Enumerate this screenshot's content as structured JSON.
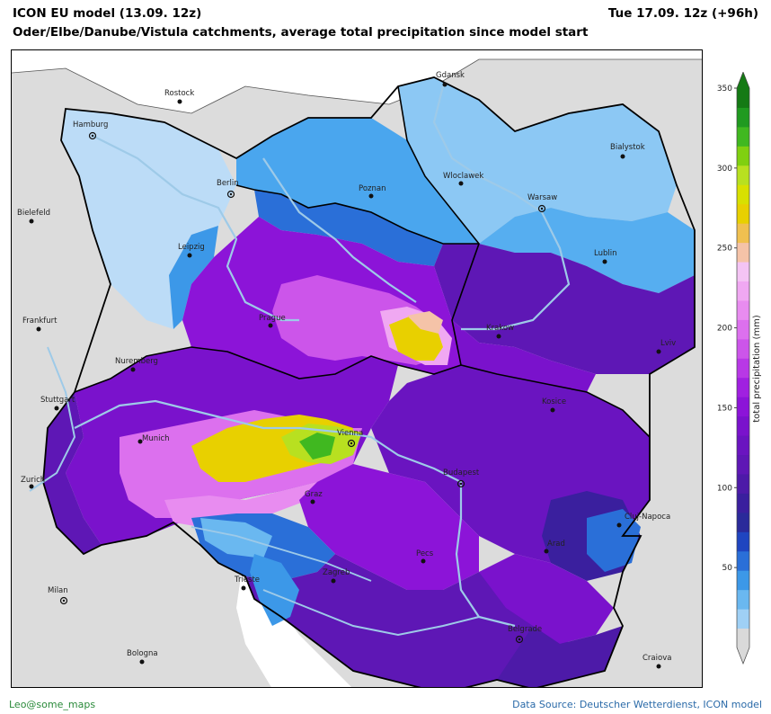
{
  "header": {
    "title": "ICON EU model (13.09. 12z)",
    "subtitle": "Oder/Elbe/Danube/Vistula catchments, average total precipitation since model start",
    "valid_time": "Tue 17.09. 12z (+96h)"
  },
  "colorbar": {
    "label": "total precipitation (mm)",
    "ticks": [
      "50",
      "100",
      "150",
      "200",
      "250",
      "300",
      "350"
    ],
    "range": [
      0,
      350
    ],
    "colors": [
      "#d9d9d9",
      "#9fd0f5",
      "#6ab8f0",
      "#3c98e8",
      "#2a6fd8",
      "#1f45c0",
      "#2a2a9a",
      "#3a1f9e",
      "#4d1aa8",
      "#5e17b5",
      "#6a14c0",
      "#7a12cc",
      "#8c14d8",
      "#a020e0",
      "#b838e6",
      "#cc55ea",
      "#dc70ee",
      "#e88cf0",
      "#f0a8f2",
      "#f4c4f4",
      "#f5c3a8",
      "#f0c050",
      "#e8d000",
      "#d8e000",
      "#b8e020",
      "#80d010",
      "#40b820",
      "#209a20",
      "#157a15"
    ]
  },
  "cities": [
    {
      "name": "Gdansk"
    },
    {
      "name": "Rostock"
    },
    {
      "name": "Hamburg"
    },
    {
      "name": "Bialystok"
    },
    {
      "name": "Wloclawek"
    },
    {
      "name": "Berlin"
    },
    {
      "name": "Poznan"
    },
    {
      "name": "Warsaw"
    },
    {
      "name": "Bielefeld"
    },
    {
      "name": "Leipzig"
    },
    {
      "name": "Lublin"
    },
    {
      "name": "Frankfurt"
    },
    {
      "name": "Prague"
    },
    {
      "name": "Krakow"
    },
    {
      "name": "Lviv"
    },
    {
      "name": "Nuremberg"
    },
    {
      "name": "Stuttgart"
    },
    {
      "name": "Kosice"
    },
    {
      "name": "Munich"
    },
    {
      "name": "Vienna"
    },
    {
      "name": "Budapest"
    },
    {
      "name": "Zurich"
    },
    {
      "name": "Graz"
    },
    {
      "name": "Cluj-Napoca"
    },
    {
      "name": "Arad"
    },
    {
      "name": "Milan"
    },
    {
      "name": "Trieste"
    },
    {
      "name": "Zagreb"
    },
    {
      "name": "Pecs"
    },
    {
      "name": "Belgrade"
    },
    {
      "name": "Bologna"
    },
    {
      "name": "Craiova"
    }
  ],
  "footer": {
    "credit": "Leo@some_maps",
    "source": "Data Source: Deutscher Wetterdienst, ICON model"
  }
}
